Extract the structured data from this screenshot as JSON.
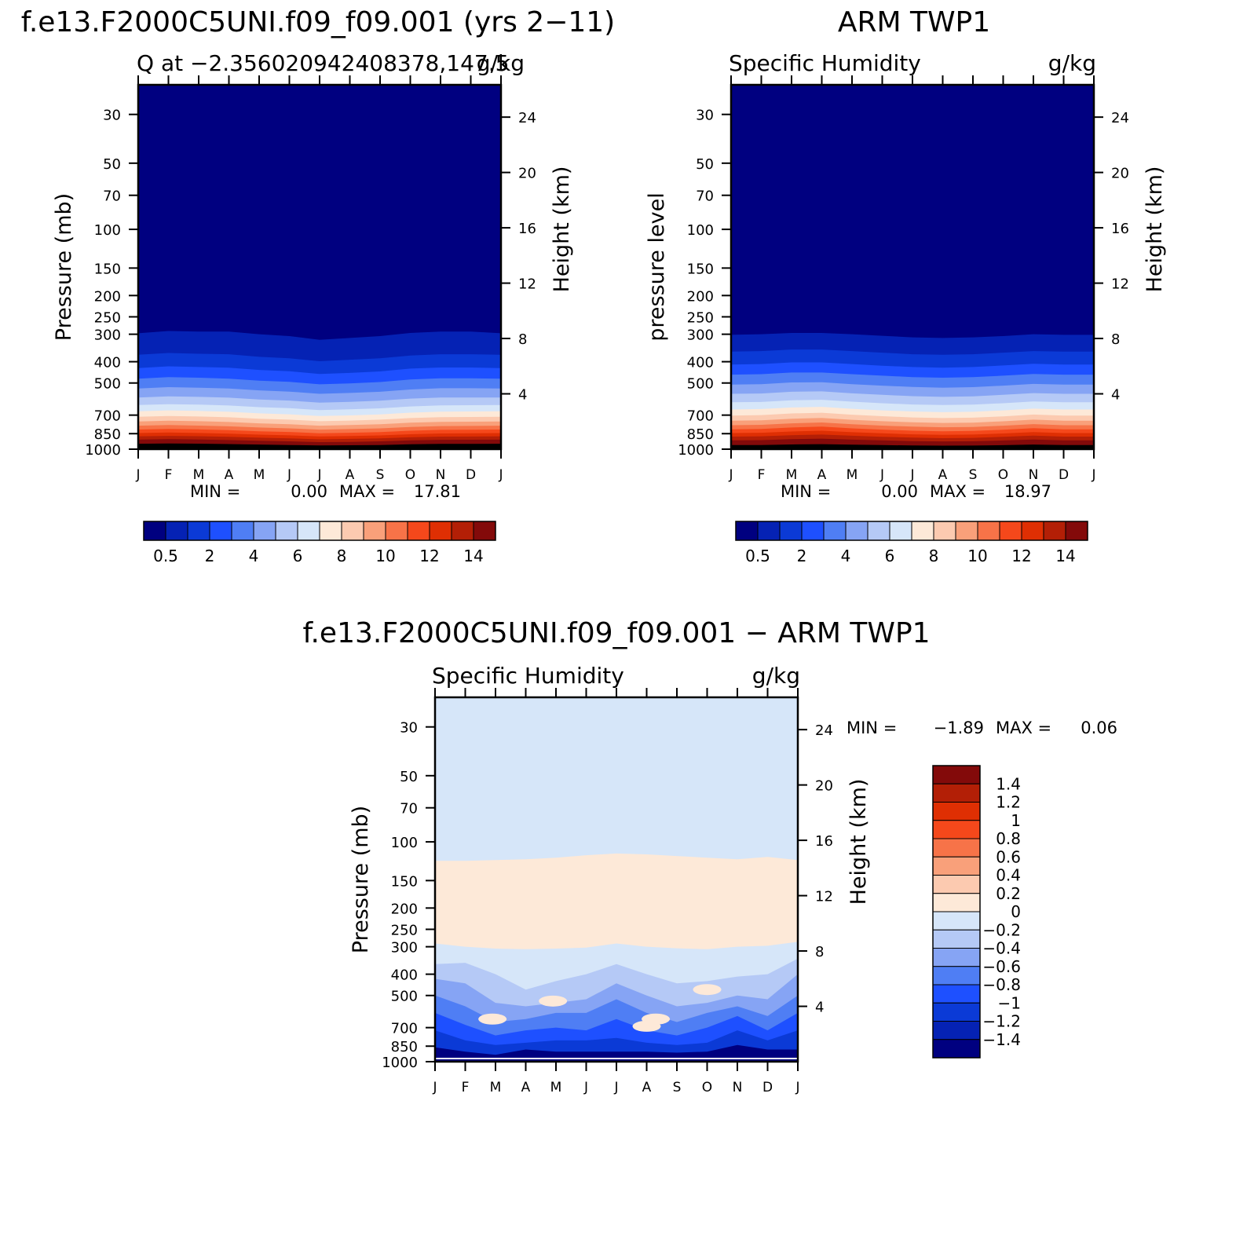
{
  "chart_data": [
    {
      "type": "heatmap",
      "main_title": "f.e13.F2000C5UNI.f09_f09.001 (yrs 2−11)",
      "subtitle_left": "Q at −2.356020942408378,147.5",
      "units": "g/kg",
      "ylabel": "Pressure (mb)",
      "ylabel_right": "Height (km)",
      "x_ticks": [
        "J",
        "F",
        "M",
        "A",
        "M",
        "J",
        "J",
        "A",
        "S",
        "O",
        "N",
        "D",
        "J"
      ],
      "y_ticks": [
        30,
        50,
        70,
        100,
        150,
        200,
        250,
        300,
        400,
        500,
        700,
        850,
        1000
      ],
      "y_right_ticks": [
        24,
        20,
        16,
        12,
        8,
        4
      ],
      "log_pressure_axis": true,
      "ylim": [
        1000,
        22
      ],
      "stats": {
        "min_label": "MIN =",
        "min": "0.00",
        "max_label": "MAX =",
        "max": "17.81"
      },
      "colorbar": {
        "orientation": "horizontal",
        "tick_labels": [
          "0.5",
          "2",
          "4",
          "6",
          "8",
          "10",
          "12",
          "14"
        ],
        "colors": [
          "#000080",
          "#0522b4",
          "#0b3ad6",
          "#1e50ff",
          "#4f7ef4",
          "#86a4f4",
          "#b5c9f6",
          "#d6e6f9",
          "#fde9d8",
          "#fccab0",
          "#f9a07a",
          "#f77348",
          "#f5481b",
          "#df2f03",
          "#b31f06",
          "#830a0a"
        ]
      },
      "isobars_pressure_by_month": {
        "months": [
          "J",
          "F",
          "M",
          "A",
          "M",
          "J",
          "J",
          "A",
          "S",
          "O",
          "N",
          "D",
          "J"
        ],
        "levels": [
          "0.5",
          "1",
          "2",
          "3",
          "4",
          "5",
          "6",
          "7",
          "8",
          "9",
          "10",
          "11",
          "12",
          "13",
          "14",
          "15"
        ],
        "values": [
          [
            297,
            290,
            292,
            292,
            300,
            306,
            318,
            312,
            306,
            296,
            292,
            292,
            297
          ],
          [
            372,
            365,
            368,
            370,
            380,
            386,
            398,
            392,
            386,
            375,
            370,
            370,
            372
          ],
          [
            428,
            420,
            423,
            426,
            436,
            442,
            455,
            450,
            443,
            430,
            425,
            425,
            428
          ],
          [
            478,
            470,
            473,
            478,
            488,
            494,
            507,
            502,
            495,
            482,
            476,
            476,
            478
          ],
          [
            530,
            522,
            525,
            530,
            540,
            547,
            560,
            555,
            548,
            535,
            528,
            528,
            530
          ],
          [
            582,
            575,
            578,
            583,
            594,
            601,
            614,
            609,
            602,
            589,
            582,
            582,
            582
          ],
          [
            630,
            624,
            627,
            633,
            644,
            651,
            664,
            659,
            652,
            639,
            632,
            631,
            630
          ],
          [
            672,
            666,
            670,
            676,
            687,
            694,
            707,
            702,
            695,
            682,
            675,
            674,
            672
          ],
          [
            712,
            706,
            710,
            716,
            727,
            734,
            746,
            741,
            734,
            722,
            715,
            714,
            712
          ],
          [
            748,
            742,
            746,
            752,
            763,
            770,
            782,
            777,
            770,
            758,
            751,
            750,
            748
          ],
          [
            782,
            777,
            781,
            787,
            797,
            804,
            815,
            810,
            804,
            792,
            785,
            784,
            782
          ],
          [
            814,
            809,
            813,
            819,
            829,
            835,
            846,
            842,
            836,
            824,
            817,
            816,
            814
          ],
          [
            845,
            840,
            844,
            850,
            859,
            865,
            875,
            871,
            866,
            855,
            848,
            847,
            845
          ],
          [
            874,
            870,
            873,
            879,
            887,
            893,
            902,
            898,
            893,
            883,
            877,
            876,
            874
          ],
          [
            905,
            901,
            904,
            909,
            916,
            921,
            929,
            926,
            921,
            912,
            907,
            906,
            905
          ],
          [
            945,
            942,
            944,
            948,
            953,
            957,
            962,
            960,
            957,
            950,
            946,
            946,
            945
          ]
        ]
      }
    },
    {
      "type": "heatmap",
      "main_title": "ARM TWP1",
      "subtitle_left": "Specific Humidity",
      "units": "g/kg",
      "ylabel": "pressure level",
      "ylabel_right": "Height (km)",
      "x_ticks": [
        "J",
        "F",
        "M",
        "A",
        "M",
        "J",
        "J",
        "A",
        "S",
        "O",
        "N",
        "D",
        "J"
      ],
      "y_ticks": [
        30,
        50,
        70,
        100,
        150,
        200,
        250,
        300,
        400,
        500,
        700,
        850,
        1000
      ],
      "y_right_ticks": [
        24,
        20,
        16,
        12,
        8,
        4
      ],
      "log_pressure_axis": true,
      "ylim": [
        1000,
        22
      ],
      "stats": {
        "min_label": "MIN =",
        "min": "0.00",
        "max_label": "MAX =",
        "max": "18.97"
      },
      "colorbar": {
        "orientation": "horizontal",
        "tick_labels": [
          "0.5",
          "2",
          "4",
          "6",
          "8",
          "10",
          "12",
          "14"
        ],
        "colors": [
          "#000080",
          "#0522b4",
          "#0b3ad6",
          "#1e50ff",
          "#4f7ef4",
          "#86a4f4",
          "#b5c9f6",
          "#d6e6f9",
          "#fde9d8",
          "#fccab0",
          "#f9a07a",
          "#f77348",
          "#f5481b",
          "#df2f03",
          "#b31f06",
          "#830a0a"
        ]
      },
      "isobars_pressure_by_month": {
        "months": [
          "J",
          "F",
          "M",
          "A",
          "M",
          "J",
          "J",
          "A",
          "S",
          "O",
          "N",
          "D",
          "J"
        ],
        "levels": [
          "0.5",
          "1",
          "2",
          "3",
          "4",
          "5",
          "6",
          "7",
          "8",
          "9",
          "10",
          "11",
          "12",
          "13",
          "14",
          "15"
        ],
        "values": [
          [
            302,
            300,
            296,
            296,
            300,
            305,
            310,
            312,
            310,
            306,
            300,
            302,
            302
          ],
          [
            360,
            358,
            352,
            352,
            358,
            364,
            370,
            372,
            370,
            364,
            358,
            360,
            360
          ],
          [
            412,
            410,
            403,
            403,
            410,
            417,
            423,
            426,
            423,
            416,
            409,
            412,
            412
          ],
          [
            458,
            456,
            448,
            448,
            456,
            463,
            470,
            473,
            470,
            463,
            455,
            458,
            458
          ],
          [
            508,
            506,
            497,
            496,
            506,
            514,
            521,
            525,
            522,
            514,
            505,
            508,
            508
          ],
          [
            560,
            558,
            548,
            546,
            557,
            566,
            574,
            578,
            575,
            566,
            556,
            560,
            560
          ],
          [
            612,
            610,
            599,
            596,
            608,
            618,
            626,
            630,
            627,
            618,
            607,
            612,
            612
          ],
          [
            660,
            657,
            646,
            642,
            655,
            666,
            674,
            679,
            676,
            666,
            654,
            660,
            660
          ],
          [
            703,
            700,
            688,
            683,
            697,
            708,
            717,
            722,
            719,
            709,
            696,
            703,
            703
          ],
          [
            742,
            739,
            727,
            721,
            735,
            746,
            755,
            760,
            757,
            747,
            734,
            742,
            742
          ],
          [
            778,
            775,
            763,
            756,
            770,
            781,
            790,
            795,
            792,
            782,
            769,
            778,
            778
          ],
          [
            812,
            809,
            797,
            790,
            804,
            815,
            824,
            829,
            826,
            816,
            803,
            812,
            812
          ],
          [
            845,
            842,
            831,
            824,
            837,
            847,
            856,
            861,
            858,
            848,
            836,
            845,
            845
          ],
          [
            877,
            874,
            864,
            858,
            869,
            878,
            886,
            891,
            888,
            879,
            868,
            877,
            877
          ],
          [
            912,
            910,
            901,
            896,
            905,
            912,
            919,
            922,
            920,
            913,
            904,
            912,
            912
          ],
          [
            958,
            957,
            952,
            949,
            954,
            958,
            962,
            964,
            963,
            959,
            953,
            958,
            958
          ]
        ]
      }
    },
    {
      "type": "heatmap",
      "main_title": "f.e13.F2000C5UNI.f09_f09.001 − ARM TWP1",
      "subtitle_left": "Specific Humidity",
      "units": "g/kg",
      "ylabel": "Pressure (mb)",
      "ylabel_right": "Height (km)",
      "x_ticks": [
        "J",
        "F",
        "M",
        "A",
        "M",
        "J",
        "J",
        "A",
        "S",
        "O",
        "N",
        "D",
        "J"
      ],
      "y_ticks": [
        30,
        50,
        70,
        100,
        150,
        200,
        250,
        300,
        400,
        500,
        700,
        850,
        1000
      ],
      "y_right_ticks": [
        24,
        20,
        16,
        12,
        8,
        4
      ],
      "log_pressure_axis": true,
      "ylim": [
        1000,
        22
      ],
      "stats": {
        "min_label": "MIN =",
        "min": "−1.89",
        "max_label": "MAX =",
        "max": "0.06"
      },
      "colorbar": {
        "orientation": "vertical",
        "tick_labels": [
          "1.4",
          "1.2",
          "1",
          "0.8",
          "0.6",
          "0.4",
          "0.2",
          "0",
          "−0.2",
          "−0.4",
          "−0.6",
          "−0.8",
          "−1",
          "−1.2",
          "−1.4"
        ],
        "colors": [
          "#830a0a",
          "#b31f06",
          "#df2f03",
          "#f5481b",
          "#f77348",
          "#f9a07a",
          "#fccab0",
          "#fde9d8",
          "#d6e6f9",
          "#b5c9f6",
          "#86a4f4",
          "#4f7ef4",
          "#1e50ff",
          "#0b3ad6",
          "#0522b4",
          "#000080"
        ]
      },
      "difference_bands": {
        "upper_band_top_pressure": [
          122,
          122,
          121,
          120,
          118,
          115,
          113,
          114,
          116,
          118,
          120,
          117,
          121
        ],
        "upper_band_bottom_pressure": [
          290,
          300,
          306,
          308,
          306,
          303,
          290,
          300,
          305,
          308,
          300,
          297,
          285
        ],
        "lower_layers_pressure": {
          "neg_0_2": [
            360,
            355,
            400,
            470,
            430,
            400,
            360,
            400,
            440,
            430,
            410,
            400,
            340
          ],
          "neg_0_4": [
            420,
            440,
            540,
            560,
            540,
            520,
            440,
            500,
            560,
            540,
            500,
            520,
            400
          ],
          "neg_0_6": [
            500,
            560,
            660,
            640,
            600,
            600,
            520,
            600,
            660,
            600,
            560,
            620,
            500
          ],
          "neg_0_8": [
            600,
            680,
            760,
            720,
            700,
            720,
            640,
            720,
            760,
            700,
            620,
            720,
            600
          ],
          "neg_1_0": [
            720,
            800,
            840,
            820,
            800,
            800,
            780,
            820,
            840,
            820,
            720,
            800,
            720
          ],
          "neg_1_4": [
            860,
            900,
            930,
            880,
            900,
            900,
            900,
            900,
            910,
            900,
            840,
            880,
            880
          ]
        }
      }
    }
  ]
}
